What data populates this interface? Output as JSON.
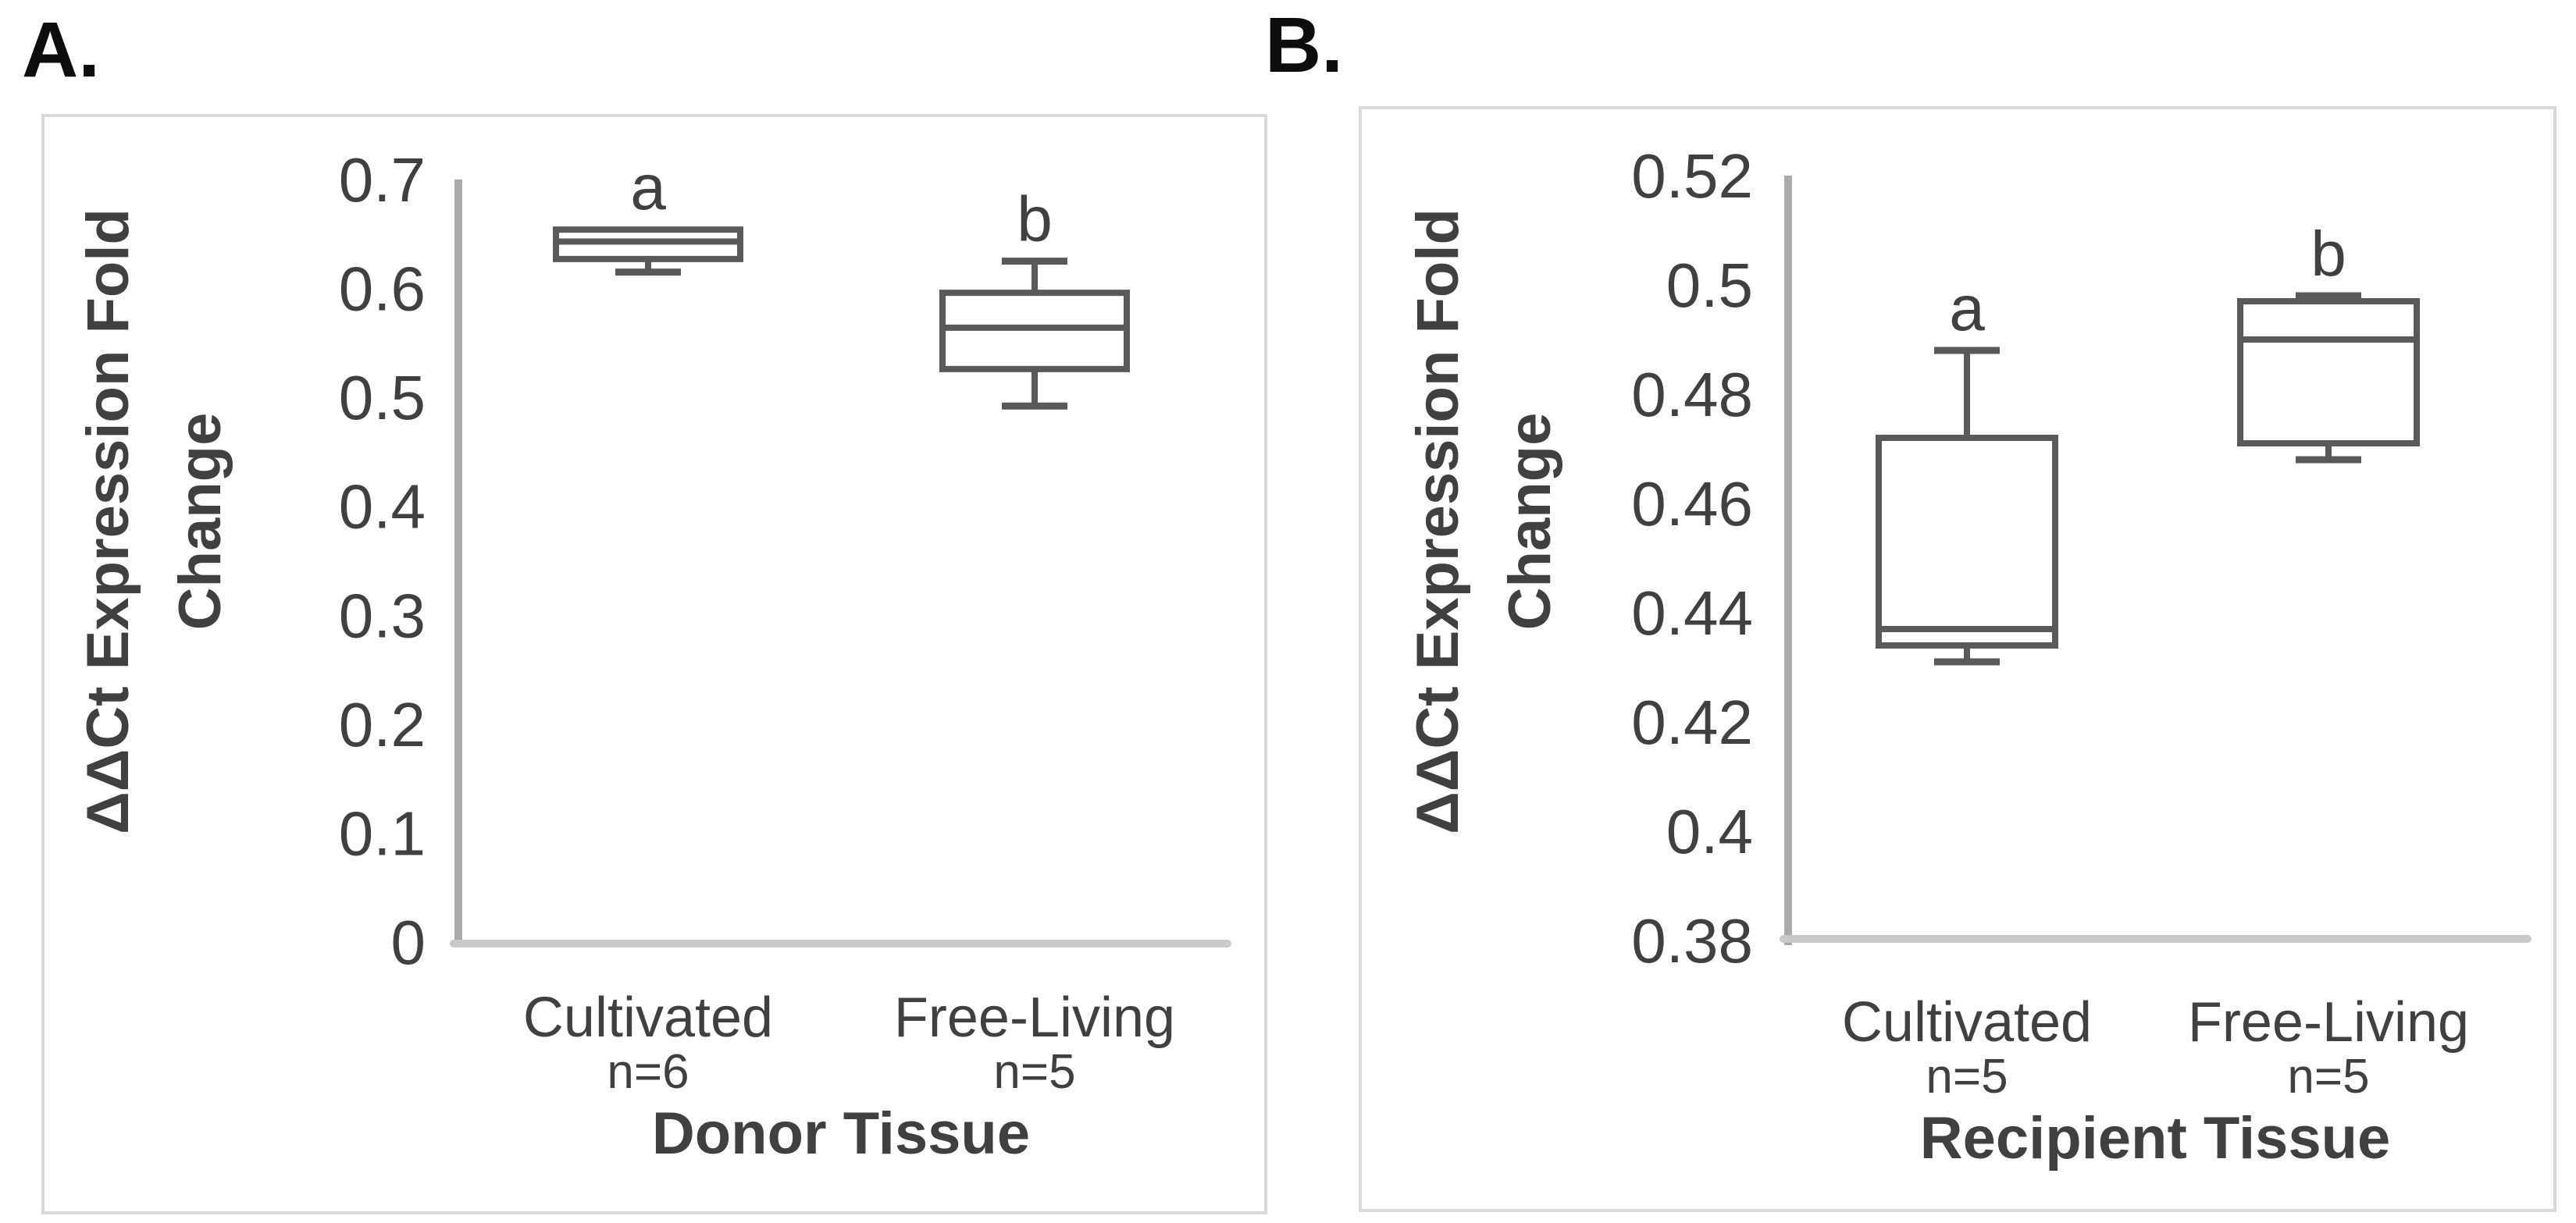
{
  "colors": {
    "background": "#ffffff",
    "box_stroke": "#595959",
    "y_axis_line": "#ababab",
    "x_axis_line": "#c9c9c9",
    "panel_border": "#d9d9d9",
    "tick_text": "#404040",
    "title_text": "#262626",
    "panel_label_text": "#0d0d0d"
  },
  "chart_data": [
    {
      "type": "boxplot",
      "panel_label": "A.",
      "y_axis": {
        "title": "ΔΔCt Expression Fold Change",
        "title_lines": [
          "ΔΔCt Expression Fold",
          "Change"
        ],
        "ylim": [
          0,
          0.7
        ],
        "ticks": [
          {
            "label": "0.7",
            "value": 0.7
          },
          {
            "label": "0.6",
            "value": 0.6
          },
          {
            "label": "0.5",
            "value": 0.5
          },
          {
            "label": "0.4",
            "value": 0.4
          },
          {
            "label": "0.3",
            "value": 0.3
          },
          {
            "label": "0.2",
            "value": 0.2
          },
          {
            "label": "0.1",
            "value": 0.1
          },
          {
            "label": "0",
            "value": 0
          }
        ]
      },
      "x_axis": {
        "title": "Donor Tissue"
      },
      "series": [
        {
          "category": "Cultivated",
          "sample_size": "n=6",
          "sig_letter": "a",
          "whisker_low": 0.615,
          "q1": 0.627,
          "median": 0.643,
          "q3": 0.654,
          "whisker_high": 0.654
        },
        {
          "category": "Free-Living",
          "sample_size": "n=5",
          "sig_letter": "b",
          "whisker_low": 0.492,
          "q1": 0.526,
          "median": 0.564,
          "q3": 0.596,
          "whisker_high": 0.625
        }
      ]
    },
    {
      "type": "boxplot",
      "panel_label": "B.",
      "y_axis": {
        "title": "ΔΔCt Expression Fold Change",
        "title_lines": [
          "ΔΔCt Expression Fold",
          "Change"
        ],
        "ylim": [
          0.38,
          0.52
        ],
        "ticks": [
          {
            "label": "0.52",
            "value": 0.52
          },
          {
            "label": "0.5",
            "value": 0.5
          },
          {
            "label": "0.48",
            "value": 0.48
          },
          {
            "label": "0.46",
            "value": 0.46
          },
          {
            "label": "0.44",
            "value": 0.44
          },
          {
            "label": "0.42",
            "value": 0.42
          },
          {
            "label": "0.4",
            "value": 0.4
          },
          {
            "label": "0.38",
            "value": 0.38
          }
        ]
      },
      "x_axis": {
        "title": "Recipient Tissue"
      },
      "series": [
        {
          "category": "Cultivated",
          "sample_size": "n=5",
          "sig_letter": "a",
          "whisker_low": 0.431,
          "q1": 0.434,
          "median": 0.437,
          "q3": 0.472,
          "whisker_high": 0.488
        },
        {
          "category": "Free-Living",
          "sample_size": "n=5",
          "sig_letter": "b",
          "whisker_low": 0.468,
          "q1": 0.471,
          "median": 0.49,
          "q3": 0.497,
          "whisker_high": 0.498
        }
      ]
    }
  ]
}
